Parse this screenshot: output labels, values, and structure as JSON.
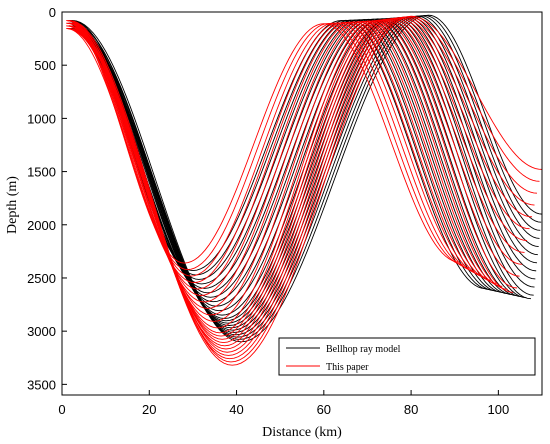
{
  "chart_data": {
    "type": "line",
    "title": "",
    "xlabel": "Distance (km)",
    "ylabel": "Depth (m)",
    "xlim": [
      0,
      110
    ],
    "ylim": [
      3600,
      0
    ],
    "y_inverted": true,
    "grid": false,
    "x_ticks": [
      0,
      20,
      40,
      60,
      80,
      100
    ],
    "y_ticks": [
      0,
      500,
      1000,
      1500,
      2000,
      2500,
      3000,
      3500
    ],
    "legend": {
      "placement": "bottom-right"
    },
    "series": [
      {
        "name": "Bellhop ray model",
        "color": "#000000",
        "ray_count": 22,
        "representative_rays": [
          {
            "lower_turn_km": 30,
            "lower_turn_depth_m": 2430,
            "upper_turn_km": 64,
            "upper_turn_depth_m": 80,
            "second_lower_turn_km": 97,
            "second_lower_turn_depth_m": 2600
          },
          {
            "lower_turn_km": 37,
            "lower_turn_depth_m": 2870,
            "upper_turn_km": 75,
            "upper_turn_depth_m": 60,
            "second_lower_turn_km": 108,
            "second_lower_turn_depth_m": 2700
          },
          {
            "lower_turn_km": 41,
            "lower_turn_depth_m": 3100,
            "upper_turn_km": 84,
            "upper_turn_depth_m": 30,
            "second_lower_turn_km": 110,
            "second_lower_turn_depth_m": 1900
          }
        ]
      },
      {
        "name": "This paper",
        "color": "#ff0000",
        "ray_count": 22,
        "representative_rays": [
          {
            "lower_turn_km": 28,
            "lower_turn_depth_m": 2360,
            "upper_turn_km": 60,
            "upper_turn_depth_m": 110,
            "second_lower_turn_km": 91,
            "second_lower_turn_depth_m": 2350
          },
          {
            "lower_turn_km": 36,
            "lower_turn_depth_m": 3000,
            "upper_turn_km": 72,
            "upper_turn_depth_m": 80,
            "second_lower_turn_km": 104,
            "second_lower_turn_depth_m": 2650
          },
          {
            "lower_turn_km": 39,
            "lower_turn_depth_m": 3320,
            "upper_turn_km": 80,
            "upper_turn_depth_m": 40,
            "second_lower_turn_km": 110,
            "second_lower_turn_depth_m": 1480
          }
        ]
      }
    ]
  }
}
